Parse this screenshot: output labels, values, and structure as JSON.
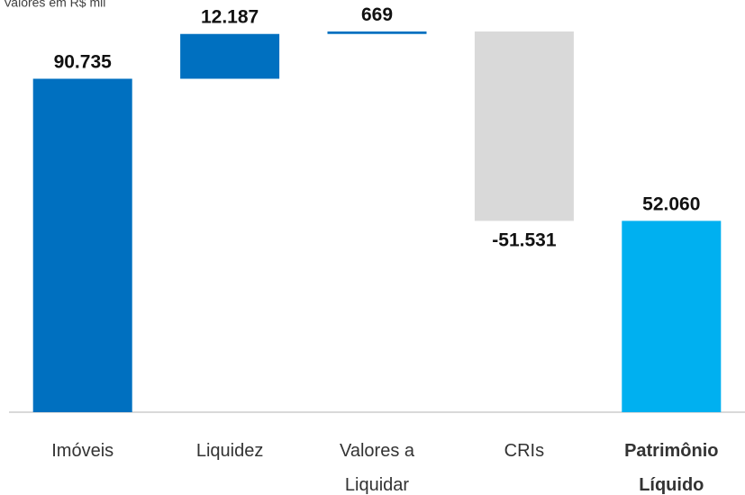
{
  "chart_data": {
    "type": "waterfall",
    "title": "Valores em R$ mil",
    "categories": [
      "Imóveis",
      "Liquidez",
      "Valores a Liquidar",
      "CRIs",
      "Patrimônio Líquido"
    ],
    "values": [
      90735,
      12187,
      669,
      -51531,
      52060
    ],
    "value_labels": [
      "90.735",
      "12.187",
      "669",
      "-51.531",
      "52.060"
    ],
    "measure": [
      "relative",
      "relative",
      "relative",
      "relative",
      "total"
    ],
    "colors": [
      "#0070c0",
      "#0070c0",
      "#0070c0",
      "#d9d9d9",
      "#00b0f0"
    ]
  }
}
